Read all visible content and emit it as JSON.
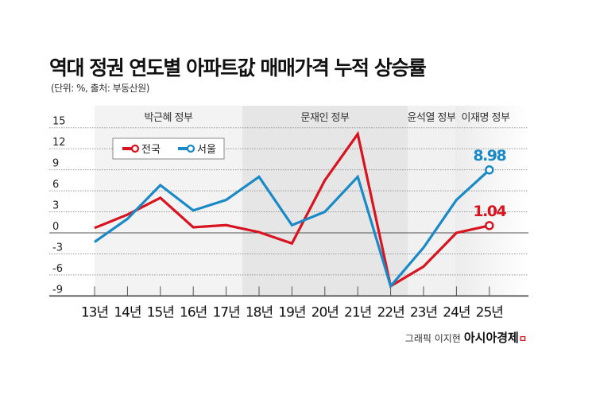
{
  "title": "역대 정권 연도별 아파트값 매매가격 누적 상승률",
  "subtitle": "(단위: %, 출처: 부동산원)",
  "credit": "그래픽 이지현",
  "logo": "아시아경제",
  "chart_data": {
    "type": "line",
    "categories": [
      "13년",
      "14년",
      "15년",
      "16년",
      "17년",
      "18년",
      "19년",
      "20년",
      "21년",
      "22년",
      "23년",
      "24년",
      "25년"
    ],
    "series": [
      {
        "name": "전국",
        "color": "#d7141f",
        "values": [
          0.7,
          2.6,
          5.0,
          0.8,
          1.1,
          0.1,
          -1.5,
          7.5,
          14.1,
          -7.6,
          -4.8,
          0.0,
          1.04
        ]
      },
      {
        "name": "서울",
        "color": "#1a8ac6",
        "values": [
          -1.3,
          2.0,
          6.8,
          3.2,
          4.7,
          8.0,
          1.1,
          3.0,
          8.0,
          -7.6,
          -2.1,
          4.7,
          8.98
        ]
      }
    ],
    "end_labels": [
      "1.04",
      "8.98"
    ],
    "yticks": [
      15,
      12,
      9,
      6,
      3,
      0,
      -3,
      -6,
      -9
    ],
    "ylim": [
      -9,
      15
    ],
    "grid": true,
    "legend": "top-left",
    "governments": [
      {
        "label": "박근혜 정부",
        "from": "13년",
        "to": "17년"
      },
      {
        "label": "문재인 정부",
        "from": "18년",
        "to": "22년"
      },
      {
        "label": "윤석열 정부",
        "from": "23년",
        "to": "24년"
      },
      {
        "label": "이재명 정부",
        "from": "25년",
        "to": "25년"
      }
    ]
  }
}
